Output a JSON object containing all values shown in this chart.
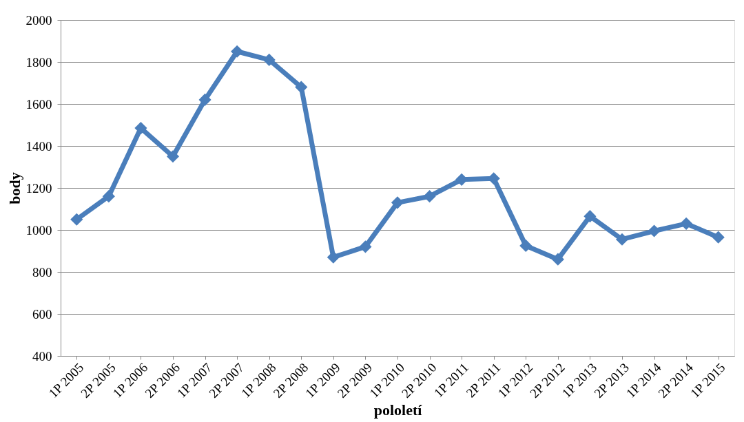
{
  "chart_data": {
    "type": "line",
    "xlabel": "pololetí",
    "ylabel": "body",
    "categories": [
      "1P 2005",
      "2P 2005",
      "1P 2006",
      "2P 2006",
      "1P 2007",
      "2P 2007",
      "1P 2008",
      "2P 2008",
      "1P 2009",
      "2P 2009",
      "1P 2010",
      "2P 2010",
      "1P 2011",
      "2P 2011",
      "1P 2012",
      "2P 2012",
      "1P 2013",
      "2P 2013",
      "1P 2014",
      "2P 2014",
      "1P 2015"
    ],
    "series": [
      {
        "color": "#4a7ebb",
        "values": [
          1050,
          1160,
          1485,
          1350,
          1620,
          1850,
          1810,
          1680,
          870,
          920,
          1130,
          1160,
          1240,
          1245,
          925,
          860,
          1065,
          955,
          995,
          1030,
          965
        ]
      }
    ],
    "ylim": [
      400,
      2000
    ],
    "yticks": [
      400,
      600,
      800,
      1000,
      1200,
      1400,
      1600,
      1800,
      2000
    ],
    "grid": "y",
    "marker": "diamond",
    "line_style": "solid"
  }
}
